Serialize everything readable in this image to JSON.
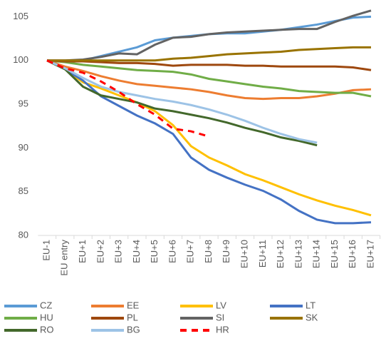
{
  "chart_data": {
    "type": "line",
    "categories": [
      "EU-1",
      "EU entry",
      "EU+1",
      "EU+2",
      "EU+3",
      "EU+4",
      "EU+5",
      "EU+6",
      "EU+7",
      "EU+8",
      "EU+9",
      "EU+10",
      "EU+11",
      "EU+12",
      "EU+13",
      "EU+14",
      "EU+15",
      "EU+16",
      "EU+17"
    ],
    "ylim": [
      80,
      106.5
    ],
    "yticks": [
      80,
      85,
      90,
      95,
      100,
      105
    ],
    "legend": "bottom",
    "series": [
      {
        "name": "CZ",
        "color": "#5B9BD5",
        "values": [
          100,
          99.9,
          100,
          100.5,
          101,
          101.5,
          102.3,
          102.6,
          102.8,
          103,
          103.1,
          103.1,
          103.3,
          103.5,
          103.8,
          104.1,
          104.5,
          104.9,
          105
        ]
      },
      {
        "name": "EE",
        "color": "#ED7D31",
        "values": [
          100,
          99.3,
          98.8,
          98.2,
          97.7,
          97.3,
          97.1,
          96.9,
          96.7,
          96.4,
          96.0,
          95.7,
          95.6,
          95.7,
          95.7,
          95.9,
          96.2,
          96.6,
          96.7
        ]
      },
      {
        "name": "LV",
        "color": "#FFC000",
        "values": [
          100,
          99,
          97.5,
          96.8,
          96,
          95.2,
          94.2,
          92.6,
          90.2,
          88.9,
          88,
          87,
          86.3,
          85.5,
          84.7,
          84,
          83.4,
          82.9,
          82.3
        ]
      },
      {
        "name": "LT",
        "color": "#4472C4",
        "values": [
          100,
          99,
          97.7,
          95.9,
          94.8,
          93.7,
          92.8,
          91.6,
          88.9,
          87.5,
          86.6,
          85.8,
          85.1,
          84.1,
          82.8,
          81.8,
          81.4,
          81.4,
          81.5
        ]
      },
      {
        "name": "HU",
        "color": "#70AD47",
        "values": [
          100,
          99.8,
          99.5,
          99.3,
          99.1,
          98.9,
          98.8,
          98.7,
          98.4,
          97.9,
          97.6,
          97.3,
          97.0,
          96.8,
          96.5,
          96.4,
          96.3,
          96.3,
          95.9
        ]
      },
      {
        "name": "PL",
        "color": "#9E480E",
        "values": [
          100,
          99.9,
          99.9,
          99.8,
          99.7,
          99.7,
          99.6,
          99.4,
          99.5,
          99.5,
          99.5,
          99.4,
          99.4,
          99.3,
          99.3,
          99.3,
          99.3,
          99.2,
          98.9
        ]
      },
      {
        "name": "SI",
        "color": "#636363",
        "values": [
          100,
          100,
          100.1,
          100.4,
          100.8,
          100.7,
          101.8,
          102.6,
          102.7,
          103,
          103.2,
          103.3,
          103.4,
          103.5,
          103.6,
          103.6,
          104.4,
          105.1,
          105.7
        ]
      },
      {
        "name": "SK",
        "color": "#997300",
        "values": [
          100,
          100,
          100,
          100,
          100,
          100,
          100,
          100.2,
          100.3,
          100.5,
          100.7,
          100.8,
          100.9,
          101,
          101.2,
          101.3,
          101.4,
          101.5,
          101.5
        ]
      },
      {
        "name": "RO",
        "color": "#43682B",
        "values": [
          100,
          99,
          97,
          96,
          95.6,
          95.2,
          94.5,
          94.2,
          93.8,
          93.4,
          92.9,
          92.3,
          91.8,
          91.2,
          90.8,
          90.3,
          null,
          null,
          null
        ]
      },
      {
        "name": "BG",
        "color": "#9DC3E6",
        "values": [
          100,
          99.1,
          98,
          97,
          96.4,
          96,
          95.6,
          95.3,
          94.9,
          94.4,
          93.8,
          93.1,
          92.3,
          91.6,
          91.0,
          90.6,
          null,
          null,
          null
        ]
      },
      {
        "name": "HR",
        "color": "#FF0000",
        "style": "dashed",
        "values": [
          100,
          99.1,
          98.6,
          97.6,
          96.4,
          95,
          93.8,
          92.2,
          91.9,
          91.3,
          null,
          null,
          null,
          null,
          null,
          null,
          null,
          null,
          null
        ]
      }
    ]
  }
}
